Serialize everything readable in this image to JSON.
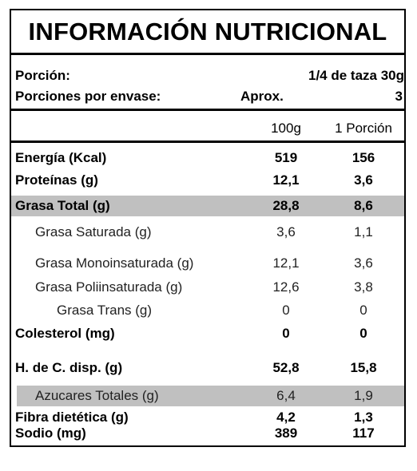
{
  "title": "INFORMACIÓN NUTRICIONAL",
  "serving": {
    "portion_label": "Porción:",
    "portion_value": "1/4 de taza  30g",
    "per_package_label": "Porciones por envase:",
    "per_package_approx": "Aprox.",
    "per_package_value": "3"
  },
  "columns": {
    "col1": "100g",
    "col2": "1 Porción"
  },
  "rows": [
    {
      "label": "Energía (Kcal)",
      "v100": "519",
      "vportion": "156"
    },
    {
      "label": "Proteínas (g)",
      "v100": "12,1",
      "vportion": "3,6"
    },
    {
      "label": "Grasa Total (g)",
      "v100": "28,8",
      "vportion": "8,6"
    },
    {
      "label": "Grasa Saturada (g)",
      "v100": "3,6",
      "vportion": "1,1"
    },
    {
      "label": "Grasa Monoinsaturada (g)",
      "v100": "12,1",
      "vportion": "3,6"
    },
    {
      "label": "Grasa Poliinsaturada (g)",
      "v100": "12,6",
      "vportion": "3,8"
    },
    {
      "label": "Grasa Trans (g)",
      "v100": "0",
      "vportion": "0"
    },
    {
      "label": "Colesterol (mg)",
      "v100": "0",
      "vportion": "0"
    },
    {
      "label": "H. de C. disp. (g)",
      "v100": "52,8",
      "vportion": "15,8"
    },
    {
      "label": "Azucares Totales (g)",
      "v100": "6,4",
      "vportion": "1,9"
    },
    {
      "label": "Fibra dietética (g)",
      "v100": "4,2",
      "vportion": "1,3"
    },
    {
      "label": "Sodio (mg)",
      "v100": "389",
      "vportion": "117"
    }
  ]
}
